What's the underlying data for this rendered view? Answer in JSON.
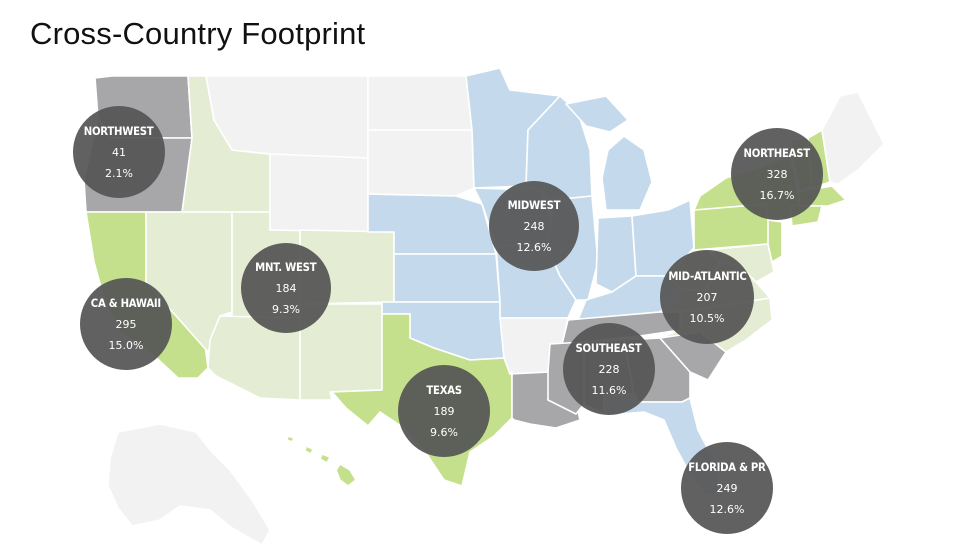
{
  "title": "Cross-Country Footprint",
  "colors": {
    "light_gray": "#f2f2f2",
    "dark_gray": "#a7a7a9",
    "light_blue": "#c4daec",
    "light_green": "#e4edd3",
    "bright_green": "#c5e08c",
    "bubble": "#555555",
    "bubble_text": "#ffffff"
  },
  "regions": [
    {
      "key": "northwest",
      "name": "NORTHWEST",
      "count": "41",
      "percent": "2.1%"
    },
    {
      "key": "midwest",
      "name": "MIDWEST",
      "count": "248",
      "percent": "12.6%"
    },
    {
      "key": "northeast",
      "name": "NORTHEAST",
      "count": "328",
      "percent": "16.7%"
    },
    {
      "key": "mnt_west",
      "name": "MNT. WEST",
      "count": "184",
      "percent": "9.3%"
    },
    {
      "key": "ca_hawaii",
      "name": "CA & HAWAII",
      "count": "295",
      "percent": "15.0%"
    },
    {
      "key": "mid_atlantic",
      "name": "MID-ATLANTIC",
      "count": "207",
      "percent": "10.5%"
    },
    {
      "key": "southeast",
      "name": "SOUTHEAST",
      "count": "228",
      "percent": "11.6%"
    },
    {
      "key": "texas",
      "name": "TEXAS",
      "count": "189",
      "percent": "9.6%"
    },
    {
      "key": "florida_pr",
      "name": "FLORIDA & PR",
      "count": "249",
      "percent": "12.6%"
    }
  ]
}
